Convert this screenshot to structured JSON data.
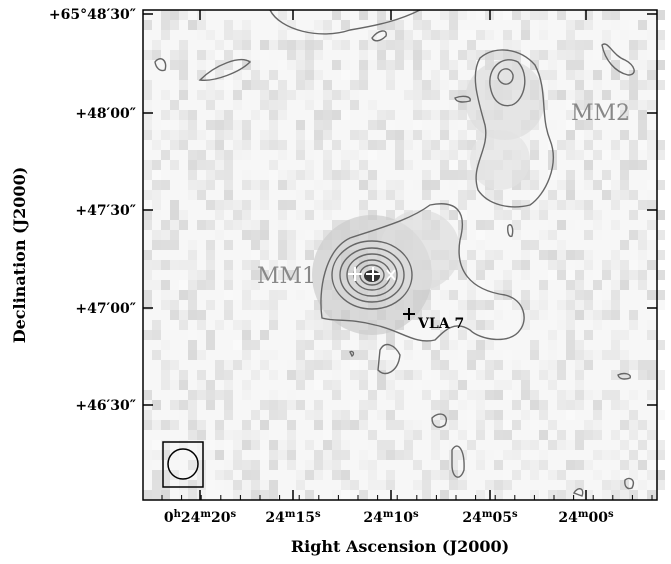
{
  "axes": {
    "x_label": "Right Ascension (J2000)",
    "y_label": "Declination (J2000)",
    "x_ticks": [
      [
        "0",
        "h",
        "24",
        "m",
        "20",
        "s"
      ],
      [
        "24",
        "m",
        "15",
        "s"
      ],
      [
        "24",
        "m",
        "10",
        "s"
      ],
      [
        "24",
        "m",
        "05",
        "s"
      ],
      [
        "24",
        "m",
        "00",
        "s"
      ]
    ],
    "y_ticks": [
      "+65°48′30″",
      "+48′00″",
      "+47′30″",
      "+47′00″",
      "+46′30″"
    ]
  },
  "annotations": {
    "mm1": "MM1",
    "mm2": "MM2",
    "vla7": "VLA 7"
  }
}
